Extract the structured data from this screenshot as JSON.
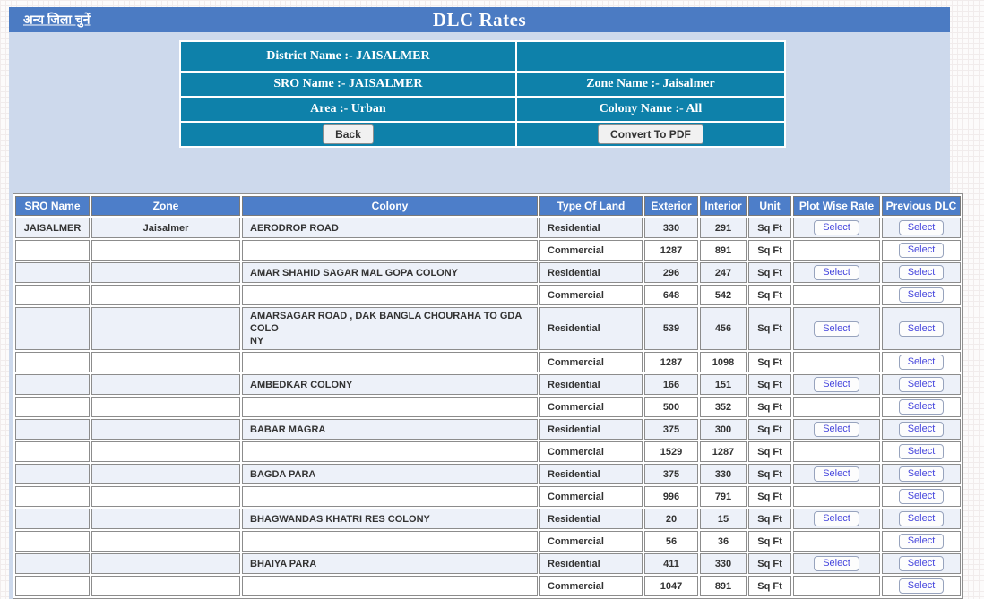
{
  "topbar": {
    "district_link_label": "अन्य जिला चुनें",
    "title": "DLC Rates"
  },
  "summary": {
    "district": "District Name :- JAISALMER",
    "sro": "SRO Name :- JAISALMER",
    "zone": "Zone Name :- Jaisalmer",
    "area": "Area :- Urban",
    "colony": "Colony Name :- All",
    "back_label": "Back",
    "convert_pdf_label": "Convert To PDF"
  },
  "table": {
    "columns": [
      "SRO Name",
      "Zone",
      "Colony",
      "Type Of Land",
      "Exterior",
      "Interior",
      "Unit",
      "Plot Wise Rate",
      "Previous DLC"
    ],
    "select_label": "Select",
    "rows": [
      {
        "sro": "JAISALMER",
        "zone": "Jaisalmer",
        "colony": "AERODROP ROAD",
        "type": "Residential",
        "exterior": "330",
        "interior": "291",
        "unit": "Sq Ft",
        "plot_wise_select": true,
        "previous_dlc_select": true
      },
      {
        "sro": "",
        "zone": "",
        "colony": "",
        "type": "Commercial",
        "exterior": "1287",
        "interior": "891",
        "unit": "Sq Ft",
        "plot_wise_select": false,
        "previous_dlc_select": true
      },
      {
        "sro": "",
        "zone": "",
        "colony": "AMAR SHAHID SAGAR MAL GOPA COLONY",
        "type": "Residential",
        "exterior": "296",
        "interior": "247",
        "unit": "Sq Ft",
        "plot_wise_select": true,
        "previous_dlc_select": true
      },
      {
        "sro": "",
        "zone": "",
        "colony": "",
        "type": "Commercial",
        "exterior": "648",
        "interior": "542",
        "unit": "Sq Ft",
        "plot_wise_select": false,
        "previous_dlc_select": true
      },
      {
        "sro": "",
        "zone": "",
        "colony": "AMARSAGAR ROAD , DAK BANGLA CHOURAHA TO GDA COLO\nNY",
        "type": "Residential",
        "exterior": "539",
        "interior": "456",
        "unit": "Sq Ft",
        "plot_wise_select": true,
        "previous_dlc_select": true
      },
      {
        "sro": "",
        "zone": "",
        "colony": "",
        "type": "Commercial",
        "exterior": "1287",
        "interior": "1098",
        "unit": "Sq Ft",
        "plot_wise_select": false,
        "previous_dlc_select": true
      },
      {
        "sro": "",
        "zone": "",
        "colony": "AMBEDKAR COLONY",
        "type": "Residential",
        "exterior": "166",
        "interior": "151",
        "unit": "Sq Ft",
        "plot_wise_select": true,
        "previous_dlc_select": true
      },
      {
        "sro": "",
        "zone": "",
        "colony": "",
        "type": "Commercial",
        "exterior": "500",
        "interior": "352",
        "unit": "Sq Ft",
        "plot_wise_select": false,
        "previous_dlc_select": true
      },
      {
        "sro": "",
        "zone": "",
        "colony": "BABAR MAGRA",
        "type": "Residential",
        "exterior": "375",
        "interior": "300",
        "unit": "Sq Ft",
        "plot_wise_select": true,
        "previous_dlc_select": true
      },
      {
        "sro": "",
        "zone": "",
        "colony": "",
        "type": "Commercial",
        "exterior": "1529",
        "interior": "1287",
        "unit": "Sq Ft",
        "plot_wise_select": false,
        "previous_dlc_select": true
      },
      {
        "sro": "",
        "zone": "",
        "colony": "BAGDA PARA",
        "type": "Residential",
        "exterior": "375",
        "interior": "330",
        "unit": "Sq Ft",
        "plot_wise_select": true,
        "previous_dlc_select": true
      },
      {
        "sro": "",
        "zone": "",
        "colony": "",
        "type": "Commercial",
        "exterior": "996",
        "interior": "791",
        "unit": "Sq Ft",
        "plot_wise_select": false,
        "previous_dlc_select": true
      },
      {
        "sro": "",
        "zone": "",
        "colony": "BHAGWANDAS KHATRI RES COLONY",
        "type": "Residential",
        "exterior": "20",
        "interior": "15",
        "unit": "Sq Ft",
        "plot_wise_select": true,
        "previous_dlc_select": true
      },
      {
        "sro": "",
        "zone": "",
        "colony": "",
        "type": "Commercial",
        "exterior": "56",
        "interior": "36",
        "unit": "Sq Ft",
        "plot_wise_select": false,
        "previous_dlc_select": true
      },
      {
        "sro": "",
        "zone": "",
        "colony": "BHAIYA PARA",
        "type": "Residential",
        "exterior": "411",
        "interior": "330",
        "unit": "Sq Ft",
        "plot_wise_select": true,
        "previous_dlc_select": true
      },
      {
        "sro": "",
        "zone": "",
        "colony": "",
        "type": "Commercial",
        "exterior": "1047",
        "interior": "891",
        "unit": "Sq Ft",
        "plot_wise_select": false,
        "previous_dlc_select": true
      }
    ]
  },
  "colors": {
    "header_blue": "#4b7bc3",
    "grid_header_blue": "#4d7ec9",
    "panel_teal": "#0e81aa",
    "page_bg": "#cdd9ec",
    "residential_row_bg": "#edf1f9",
    "select_text_blue": "#4646dd"
  }
}
